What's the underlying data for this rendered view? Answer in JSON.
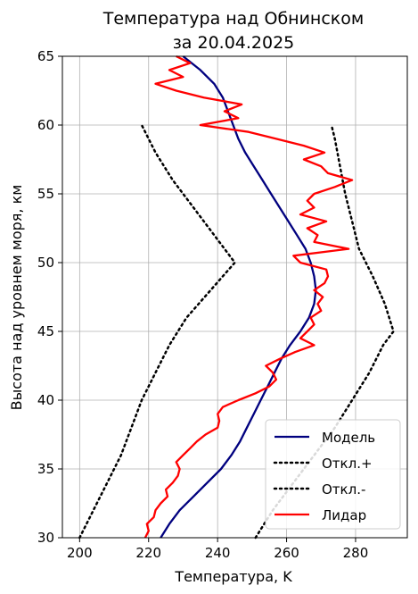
{
  "chart_data": {
    "type": "line",
    "title_line1": "Температура над Обнинском",
    "title_line2": "за 20.04.2025",
    "xlabel": "Температура, K",
    "ylabel": "Высота над уровнем моря, км",
    "xlim": [
      195,
      295
    ],
    "ylim": [
      30,
      65
    ],
    "xticks": [
      "200",
      "220",
      "240",
      "260",
      "280"
    ],
    "yticks": [
      "30",
      "35",
      "40",
      "45",
      "50",
      "55",
      "60",
      "65"
    ],
    "grid": true,
    "legend_position": "bottom-right",
    "series": [
      {
        "name": "Модель",
        "color": "#00007f",
        "style": "solid",
        "points": [
          [
            223.5,
            30
          ],
          [
            226,
            31
          ],
          [
            229,
            32
          ],
          [
            233,
            33
          ],
          [
            237,
            34
          ],
          [
            241,
            35
          ],
          [
            244,
            36
          ],
          [
            246.5,
            37
          ],
          [
            248.5,
            38
          ],
          [
            250.5,
            39
          ],
          [
            252.5,
            40
          ],
          [
            254.5,
            41
          ],
          [
            256.5,
            42
          ],
          [
            258.5,
            43
          ],
          [
            261,
            44
          ],
          [
            264,
            45
          ],
          [
            266.5,
            46
          ],
          [
            268,
            47
          ],
          [
            268.5,
            48
          ],
          [
            268,
            49
          ],
          [
            267,
            50
          ],
          [
            265.5,
            51
          ],
          [
            263,
            52
          ],
          [
            260.5,
            53
          ],
          [
            258,
            54
          ],
          [
            255.5,
            55
          ],
          [
            253,
            56
          ],
          [
            250.5,
            57
          ],
          [
            248,
            58
          ],
          [
            246,
            59
          ],
          [
            244.5,
            60
          ],
          [
            243,
            61
          ],
          [
            241.5,
            62
          ],
          [
            239,
            63
          ],
          [
            235,
            64
          ],
          [
            230,
            65
          ]
        ]
      },
      {
        "name": "Откл.+",
        "color": "#000000",
        "style": "dotted",
        "points": [
          [
            251,
            30
          ],
          [
            256,
            32
          ],
          [
            262,
            34
          ],
          [
            268,
            36
          ],
          [
            274,
            38
          ],
          [
            279,
            40
          ],
          [
            284,
            42
          ],
          [
            288,
            44
          ],
          [
            291,
            45
          ],
          [
            288.5,
            47
          ],
          [
            285,
            49
          ],
          [
            281,
            51
          ],
          [
            279,
            53
          ],
          [
            277,
            55
          ],
          [
            275.5,
            57
          ],
          [
            274,
            59
          ],
          [
            273,
            60
          ]
        ]
      },
      {
        "name": "Откл.-",
        "color": "#000000",
        "style": "dotted",
        "points": [
          [
            200,
            30
          ],
          [
            204,
            32
          ],
          [
            208,
            34
          ],
          [
            212,
            36
          ],
          [
            215,
            38
          ],
          [
            218,
            40
          ],
          [
            222,
            42
          ],
          [
            226,
            44
          ],
          [
            231,
            46
          ],
          [
            238,
            48
          ],
          [
            245,
            50
          ],
          [
            239,
            52
          ],
          [
            233,
            54
          ],
          [
            227,
            56
          ],
          [
            222,
            58
          ],
          [
            218,
            60
          ]
        ]
      },
      {
        "name": "Лидар",
        "color": "#ff0000",
        "style": "solid",
        "points": [
          [
            219,
            30
          ],
          [
            220,
            30.5
          ],
          [
            219.5,
            31
          ],
          [
            221.5,
            31.5
          ],
          [
            222,
            32
          ],
          [
            223.5,
            32.5
          ],
          [
            225.5,
            33
          ],
          [
            225,
            33.5
          ],
          [
            227,
            34
          ],
          [
            228.5,
            34.5
          ],
          [
            229,
            35
          ],
          [
            228,
            35.5
          ],
          [
            230,
            36
          ],
          [
            232,
            36.5
          ],
          [
            234,
            37
          ],
          [
            236.5,
            37.5
          ],
          [
            240,
            38
          ],
          [
            240.5,
            38.5
          ],
          [
            240,
            39
          ],
          [
            241.5,
            39.5
          ],
          [
            246,
            40
          ],
          [
            251,
            40.5
          ],
          [
            255,
            41
          ],
          [
            257,
            41.5
          ],
          [
            256,
            42
          ],
          [
            254,
            42.5
          ],
          [
            258,
            43
          ],
          [
            262.5,
            43.5
          ],
          [
            268,
            44
          ],
          [
            264,
            44.5
          ],
          [
            266,
            45
          ],
          [
            268,
            45.5
          ],
          [
            267,
            46
          ],
          [
            270,
            46.5
          ],
          [
            269,
            47
          ],
          [
            270.5,
            47.5
          ],
          [
            268,
            48
          ],
          [
            271,
            48.5
          ],
          [
            272,
            49
          ],
          [
            271.5,
            49.5
          ],
          [
            264,
            50
          ],
          [
            262,
            50.5
          ],
          [
            278,
            51
          ],
          [
            268,
            51.5
          ],
          [
            269,
            52
          ],
          [
            266,
            52.5
          ],
          [
            271.5,
            53
          ],
          [
            264,
            53.5
          ],
          [
            268,
            54
          ],
          [
            266,
            54.5
          ],
          [
            268,
            55
          ],
          [
            274,
            55.5
          ],
          [
            279,
            56
          ],
          [
            272,
            56.5
          ],
          [
            270,
            57
          ],
          [
            265,
            57.5
          ],
          [
            271,
            58
          ],
          [
            265,
            58.5
          ],
          [
            257,
            59
          ],
          [
            249,
            59.5
          ],
          [
            235,
            60
          ],
          [
            246,
            60.5
          ],
          [
            242,
            61
          ],
          [
            247,
            61.5
          ],
          [
            236,
            62
          ],
          [
            228,
            62.5
          ],
          [
            222,
            63
          ],
          [
            230,
            63.5
          ],
          [
            226,
            64
          ],
          [
            232,
            64.5
          ],
          [
            228,
            65
          ]
        ]
      }
    ]
  }
}
